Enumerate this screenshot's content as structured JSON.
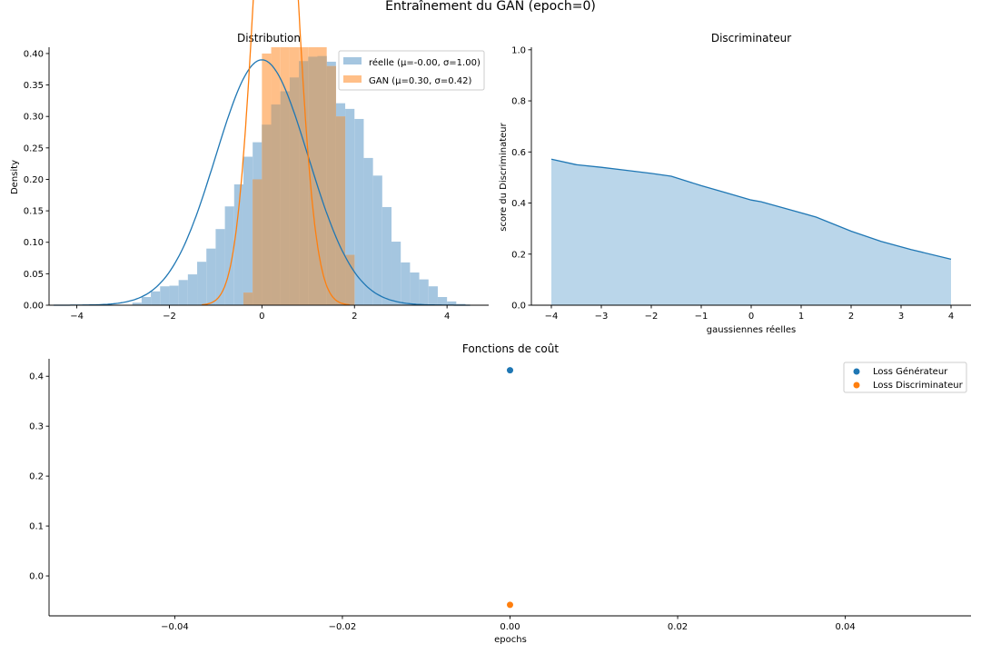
{
  "figure": {
    "suptitle": "Entraînement du GAN (epoch=0)",
    "colors": {
      "blue": "#1f77b4",
      "orange": "#ff7f0e",
      "blue_fill": "#a5c6e0",
      "orange_fill": "#ffbf88",
      "overlap_fill": "#c8aa8a",
      "disc_fill": "#bad6ea"
    }
  },
  "chart_data": [
    {
      "id": "distribution",
      "type": "bar",
      "title": "Distribution",
      "xlabel": "",
      "ylabel": "Density",
      "xlim": [
        -4.6,
        4.9
      ],
      "ylim": [
        0,
        0.41
      ],
      "xticks": [
        -4,
        -2,
        0,
        2,
        4
      ],
      "xtick_labels": [
        "−4",
        "−2",
        "0",
        "2",
        "4"
      ],
      "yticks": [
        0,
        0.05,
        0.1,
        0.15,
        0.2,
        0.25,
        0.3,
        0.35,
        0.4
      ],
      "ytick_labels": [
        "0.00",
        "0.05",
        "0.10",
        "0.15",
        "0.20",
        "0.25",
        "0.30",
        "0.35",
        "0.40"
      ],
      "grid": false,
      "legend_position": "top-right",
      "series": [
        {
          "name": "réelle (μ=-0.00, σ=1.00)",
          "kind": "hist",
          "bin_width": 0.2,
          "bins": [
            [
              -2.8,
              0.004
            ],
            [
              -2.6,
              0.013
            ],
            [
              -2.4,
              0.022
            ],
            [
              -2.2,
              0.03
            ],
            [
              -2.0,
              0.031
            ],
            [
              -1.8,
              0.04
            ],
            [
              -1.6,
              0.049
            ],
            [
              -1.4,
              0.069
            ],
            [
              -1.2,
              0.09
            ],
            [
              -1.0,
              0.121
            ],
            [
              -0.8,
              0.157
            ],
            [
              -0.6,
              0.192
            ],
            [
              -0.4,
              0.236
            ],
            [
              -0.2,
              0.259
            ],
            [
              0.0,
              0.287
            ],
            [
              0.2,
              0.319
            ],
            [
              0.4,
              0.34
            ],
            [
              0.6,
              0.362
            ],
            [
              0.8,
              0.388
            ],
            [
              1.0,
              0.395
            ],
            [
              1.2,
              0.396
            ],
            [
              1.4,
              0.387
            ],
            [
              1.6,
              0.321
            ],
            [
              1.8,
              0.312
            ],
            [
              2.0,
              0.296
            ],
            [
              2.2,
              0.234
            ],
            [
              2.4,
              0.206
            ],
            [
              2.6,
              0.156
            ],
            [
              2.8,
              0.101
            ],
            [
              3.0,
              0.068
            ],
            [
              3.2,
              0.052
            ],
            [
              3.4,
              0.041
            ],
            [
              3.6,
              0.03
            ],
            [
              3.8,
              0.013
            ],
            [
              4.0,
              0.006
            ],
            [
              4.2,
              0.002
            ]
          ],
          "kde": {
            "mu": 0.0,
            "sigma": 1.0,
            "peak": 0.39
          }
        },
        {
          "name": "GAN (μ=0.30, σ=0.42)",
          "kind": "hist",
          "bin_width": 0.2,
          "bins": [
            [
              -0.4,
              0.02
            ],
            [
              -0.2,
              0.2
            ],
            [
              0.0,
              0.4
            ],
            [
              0.2,
              0.44
            ],
            [
              0.4,
              0.48
            ],
            [
              0.6,
              0.5
            ],
            [
              0.8,
              0.48
            ],
            [
              1.0,
              0.44
            ],
            [
              1.2,
              0.42
            ],
            [
              1.4,
              0.38
            ],
            [
              1.6,
              0.3
            ],
            [
              1.8,
              0.08
            ]
          ],
          "kde": {
            "mu": 0.3,
            "sigma": 0.42,
            "peak": 0.95
          }
        }
      ]
    },
    {
      "id": "discriminator",
      "type": "area",
      "title": "Discriminateur",
      "xlabel": "gaussiennes réelles",
      "ylabel": "score du Discriminateur",
      "xlim": [
        -4.4,
        4.4
      ],
      "ylim": [
        0,
        1.01
      ],
      "xticks": [
        -4,
        -3,
        -2,
        -1,
        0,
        1,
        2,
        3,
        4
      ],
      "xtick_labels": [
        "−4",
        "−3",
        "−2",
        "−1",
        "0",
        "1",
        "2",
        "3",
        "4"
      ],
      "yticks": [
        0,
        0.2,
        0.4,
        0.6,
        0.8,
        1.0
      ],
      "ytick_labels": [
        "0.0",
        "0.2",
        "0.4",
        "0.6",
        "0.8",
        "1.0"
      ],
      "grid": false,
      "x": [
        -4.0,
        -3.5,
        -3.0,
        -2.5,
        -2.0,
        -1.6,
        -1.0,
        -0.5,
        0.0,
        0.2,
        0.7,
        1.3,
        2.0,
        2.6,
        3.2,
        4.0
      ],
      "y": [
        0.572,
        0.55,
        0.54,
        0.528,
        0.516,
        0.505,
        0.468,
        0.44,
        0.412,
        0.405,
        0.378,
        0.345,
        0.29,
        0.25,
        0.218,
        0.18
      ]
    },
    {
      "id": "losses",
      "type": "scatter",
      "title": "Fonctions de coût",
      "xlabel": "epochs",
      "ylabel": "",
      "xlim": [
        -0.055,
        0.055
      ],
      "ylim": [
        -0.08,
        0.435
      ],
      "xticks": [
        -0.04,
        -0.02,
        0.0,
        0.02,
        0.04
      ],
      "xtick_labels": [
        "−0.04",
        "−0.02",
        "0.00",
        "0.02",
        "0.04"
      ],
      "yticks": [
        0.0,
        0.1,
        0.2,
        0.3,
        0.4
      ],
      "ytick_labels": [
        "0.0",
        "0.1",
        "0.2",
        "0.3",
        "0.4"
      ],
      "grid": false,
      "legend_position": "top-right",
      "series": [
        {
          "name": "Loss Générateur",
          "x": [
            0.0
          ],
          "y": [
            0.412
          ]
        },
        {
          "name": "Loss Discriminateur",
          "x": [
            0.0
          ],
          "y": [
            -0.058
          ]
        }
      ]
    }
  ]
}
